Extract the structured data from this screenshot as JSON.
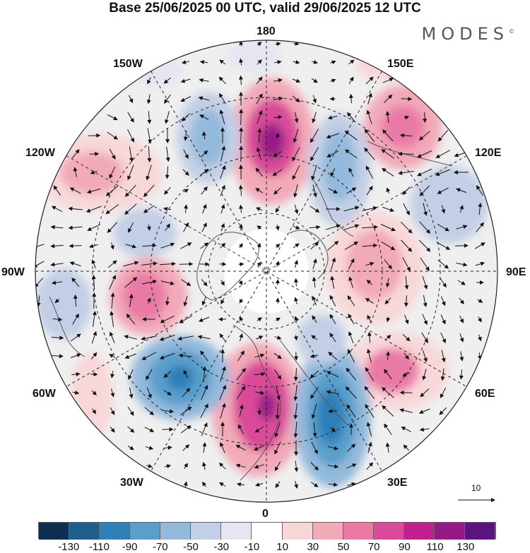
{
  "title": "Base 25/06/2025 00 UTC, valid 29/06/2025 12 UTC",
  "brand": "MODES",
  "brand_mark": "©",
  "longitude_labels": {
    "top": "180",
    "bottom": "0",
    "left": "90W",
    "right": "90E",
    "upper_left_1": "150W",
    "upper_left_2": "120W",
    "lower_left_1": "60W",
    "lower_left_2": "30W",
    "upper_right_1": "150E",
    "upper_right_2": "120E",
    "lower_right_1": "60E",
    "lower_right_2": "30E"
  },
  "vector_scale_label": "10",
  "colorbar": {
    "colors": [
      "#0d2f52",
      "#1e5f8e",
      "#2f7fb8",
      "#5a9fcc",
      "#93b9dc",
      "#c3cfe6",
      "#e6e6f2",
      "#ffffff",
      "#f8d7d9",
      "#f2a9b8",
      "#e979a5",
      "#d94b98",
      "#c2208f",
      "#951a86",
      "#5a1580"
    ],
    "tick_labels": [
      "-130",
      "-110",
      "-90",
      "-70",
      "-50",
      "-30",
      "-10",
      "10",
      "30",
      "50",
      "70",
      "90",
      "110",
      "130"
    ]
  },
  "colors": {
    "neutral_band": "#efefef",
    "graticule": "#222222",
    "vector": "#111111",
    "coast": "#555555"
  }
}
